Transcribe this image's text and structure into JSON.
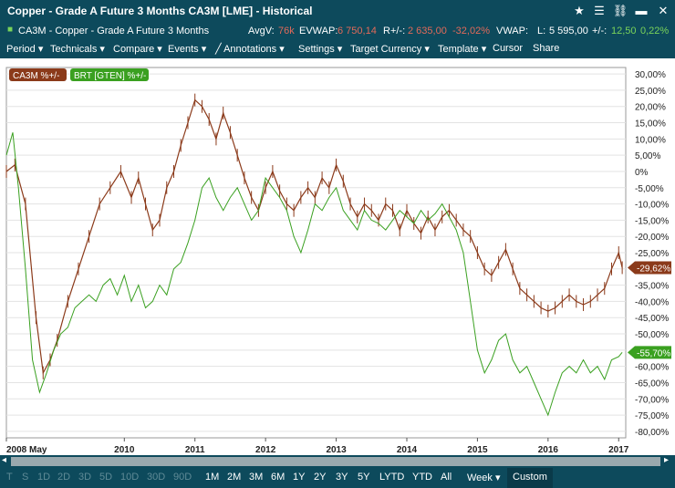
{
  "window": {
    "title": "Copper - Grade A Future 3 Months CA3M [LME] - Historical"
  },
  "infobar": {
    "instrument": "CA3M - Copper - Grade A Future 3 Months",
    "avgv_label": "AvgV:",
    "avgv_value": "76k",
    "evwap_label": "EVWAP:",
    "evwap_value": "6 750,14",
    "rpm_label": "R+/-:",
    "rpm_value": "2 635,00",
    "rpm_pct": "-32,02%",
    "vwap_label": "VWAP:",
    "last_label": "L:",
    "last_value": "5 595,00",
    "pm_label": "+/-:",
    "pm_value": "12,50",
    "pm_pct": "0,22%"
  },
  "menu": [
    "Period",
    "Technicals",
    "Compare",
    "Events",
    "Annotations",
    "Settings",
    "Target Currency",
    "Template",
    "Cursor",
    "Share"
  ],
  "bottom": {
    "disabled": [
      "T",
      "S",
      "1D",
      "2D",
      "3D",
      "5D",
      "10D",
      "30D",
      "90D"
    ],
    "enabled": [
      "1M",
      "2M",
      "3M",
      "6M",
      "1Y",
      "2Y",
      "3Y",
      "5Y",
      "LYTD",
      "YTD",
      "All"
    ],
    "week_label": "Week",
    "custom_label": "Custom"
  },
  "chart_data": {
    "type": "line",
    "ylim": [
      -82,
      32
    ],
    "y_ticks": [
      "30,00%",
      "25,00%",
      "20,00%",
      "15,00%",
      "10,00%",
      "5,00%",
      "0%",
      "-5,00%",
      "-10,00%",
      "-15,00%",
      "-20,00%",
      "-25,00%",
      "-30,00%",
      "-35,00%",
      "-40,00%",
      "-45,00%",
      "-50,00%",
      "-55,00%",
      "-60,00%",
      "-65,00%",
      "-70,00%",
      "-75,00%",
      "-80,00%"
    ],
    "y_tick_values": [
      30,
      25,
      20,
      15,
      10,
      5,
      0,
      -5,
      -10,
      -15,
      -20,
      -25,
      -30,
      -35,
      -40,
      -45,
      -50,
      -55,
      -60,
      -65,
      -70,
      -75,
      -80
    ],
    "x_ticks": [
      "2008 May",
      "2010",
      "2011",
      "2012",
      "2013",
      "2014",
      "2015",
      "2016",
      "2017"
    ],
    "x_tick_values": [
      2008.33,
      2010,
      2011,
      2012,
      2013,
      2014,
      2015,
      2016,
      2017
    ],
    "xlim": [
      2008.33,
      2017.1
    ],
    "series": [
      {
        "name": "CA3M %+/-",
        "color": "#8b3a1a",
        "last_label": "-29,62%",
        "x": [
          2008.33,
          2008.45,
          2008.6,
          2008.75,
          2008.85,
          2008.95,
          2009.05,
          2009.2,
          2009.35,
          2009.5,
          2009.65,
          2009.8,
          2009.95,
          2010.1,
          2010.2,
          2010.3,
          2010.4,
          2010.5,
          2010.6,
          2010.7,
          2010.8,
          2010.9,
          2011.0,
          2011.1,
          2011.2,
          2011.3,
          2011.4,
          2011.5,
          2011.6,
          2011.7,
          2011.8,
          2011.9,
          2012.0,
          2012.1,
          2012.2,
          2012.3,
          2012.4,
          2012.5,
          2012.6,
          2012.7,
          2012.8,
          2012.9,
          2013.0,
          2013.1,
          2013.2,
          2013.3,
          2013.4,
          2013.5,
          2013.6,
          2013.7,
          2013.8,
          2013.9,
          2014.0,
          2014.1,
          2014.2,
          2014.3,
          2014.4,
          2014.5,
          2014.6,
          2014.7,
          2014.8,
          2014.9,
          2015.0,
          2015.1,
          2015.2,
          2015.3,
          2015.4,
          2015.5,
          2015.6,
          2015.7,
          2015.8,
          2015.9,
          2016.0,
          2016.1,
          2016.2,
          2016.3,
          2016.4,
          2016.5,
          2016.6,
          2016.7,
          2016.8,
          2016.9,
          2017.0,
          2017.05
        ],
        "y": [
          0,
          2,
          -10,
          -45,
          -62,
          -58,
          -52,
          -40,
          -30,
          -20,
          -10,
          -5,
          0,
          -8,
          -2,
          -10,
          -18,
          -15,
          -5,
          0,
          8,
          15,
          22,
          20,
          16,
          10,
          18,
          12,
          5,
          -2,
          -8,
          -12,
          -5,
          0,
          -6,
          -10,
          -12,
          -8,
          -5,
          -8,
          -2,
          -5,
          2,
          -3,
          -10,
          -14,
          -10,
          -12,
          -15,
          -10,
          -12,
          -18,
          -12,
          -16,
          -19,
          -14,
          -18,
          -14,
          -12,
          -15,
          -18,
          -20,
          -25,
          -30,
          -32,
          -28,
          -24,
          -30,
          -36,
          -38,
          -40,
          -42,
          -43,
          -42,
          -40,
          -38,
          -40,
          -41,
          -40,
          -38,
          -36,
          -30,
          -25,
          -29.62
        ]
      },
      {
        "name": "BRT [GTEN] %+/-",
        "color": "#3aa020",
        "last_label": "-55,70%",
        "x": [
          2008.33,
          2008.42,
          2008.5,
          2008.6,
          2008.7,
          2008.8,
          2008.9,
          2009.0,
          2009.1,
          2009.2,
          2009.3,
          2009.4,
          2009.5,
          2009.6,
          2009.7,
          2009.8,
          2009.9,
          2010.0,
          2010.1,
          2010.2,
          2010.3,
          2010.4,
          2010.5,
          2010.6,
          2010.7,
          2010.8,
          2010.9,
          2011.0,
          2011.1,
          2011.2,
          2011.3,
          2011.4,
          2011.5,
          2011.6,
          2011.7,
          2011.8,
          2011.9,
          2012.0,
          2012.1,
          2012.2,
          2012.3,
          2012.4,
          2012.5,
          2012.6,
          2012.7,
          2012.8,
          2012.9,
          2013.0,
          2013.1,
          2013.2,
          2013.3,
          2013.4,
          2013.5,
          2013.6,
          2013.7,
          2013.8,
          2013.9,
          2014.0,
          2014.1,
          2014.2,
          2014.3,
          2014.4,
          2014.5,
          2014.6,
          2014.7,
          2014.8,
          2014.9,
          2015.0,
          2015.1,
          2015.2,
          2015.3,
          2015.4,
          2015.5,
          2015.6,
          2015.7,
          2015.8,
          2015.9,
          2016.0,
          2016.1,
          2016.2,
          2016.3,
          2016.4,
          2016.5,
          2016.6,
          2016.7,
          2016.8,
          2016.9,
          2017.0,
          2017.05
        ],
        "y": [
          5,
          12,
          -5,
          -30,
          -58,
          -68,
          -62,
          -55,
          -50,
          -48,
          -42,
          -40,
          -38,
          -40,
          -35,
          -33,
          -38,
          -32,
          -40,
          -35,
          -42,
          -40,
          -35,
          -38,
          -30,
          -28,
          -22,
          -15,
          -5,
          -2,
          -8,
          -12,
          -8,
          -5,
          -10,
          -15,
          -12,
          -2,
          -5,
          -8,
          -12,
          -20,
          -25,
          -18,
          -10,
          -12,
          -8,
          -5,
          -12,
          -15,
          -18,
          -12,
          -15,
          -16,
          -18,
          -15,
          -12,
          -14,
          -16,
          -12,
          -15,
          -13,
          -10,
          -14,
          -18,
          -25,
          -40,
          -55,
          -62,
          -58,
          -52,
          -50,
          -58,
          -62,
          -60,
          -65,
          -70,
          -75,
          -68,
          -62,
          -60,
          -62,
          -58,
          -62,
          -60,
          -64,
          -58,
          -57,
          -55.7
        ]
      }
    ]
  }
}
